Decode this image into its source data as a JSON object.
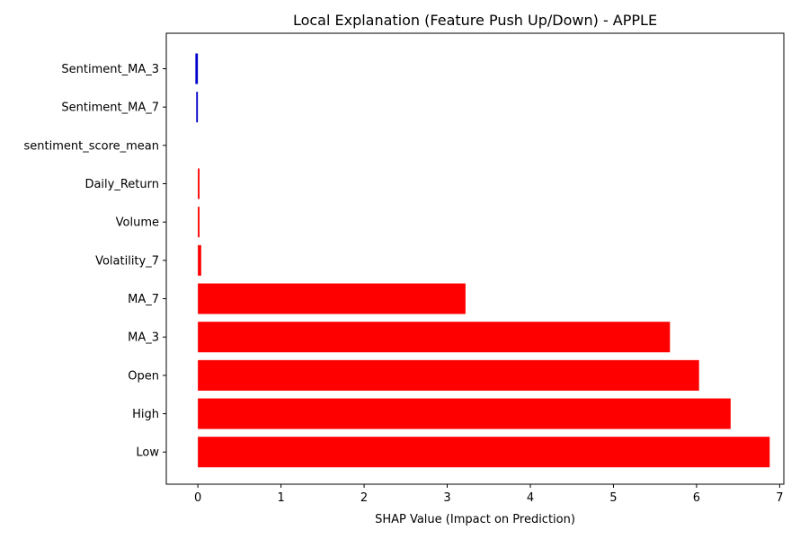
{
  "chart_data": {
    "type": "bar",
    "orientation": "horizontal",
    "title": "Local Explanation (Feature Push Up/Down) - APPLE",
    "xlabel": "SHAP Value (Impact on Prediction)",
    "ylabel": "",
    "xlim": [
      -0.38,
      7.05
    ],
    "xticks": [
      0,
      1,
      2,
      3,
      4,
      5,
      6,
      7
    ],
    "grid": false,
    "legend": "none",
    "colors": {
      "positive": "#ff0000",
      "negative": "#0000cc"
    },
    "categories": [
      "Sentiment_MA_3",
      "Sentiment_MA_7",
      "sentiment_score_mean",
      "Daily_Return",
      "Volume",
      "Volatility_7",
      "MA_7",
      "MA_3",
      "Open",
      "High",
      "Low"
    ],
    "values": [
      -0.03,
      -0.02,
      0.0,
      0.02,
      0.02,
      0.04,
      3.22,
      5.68,
      6.03,
      6.41,
      6.88
    ]
  }
}
